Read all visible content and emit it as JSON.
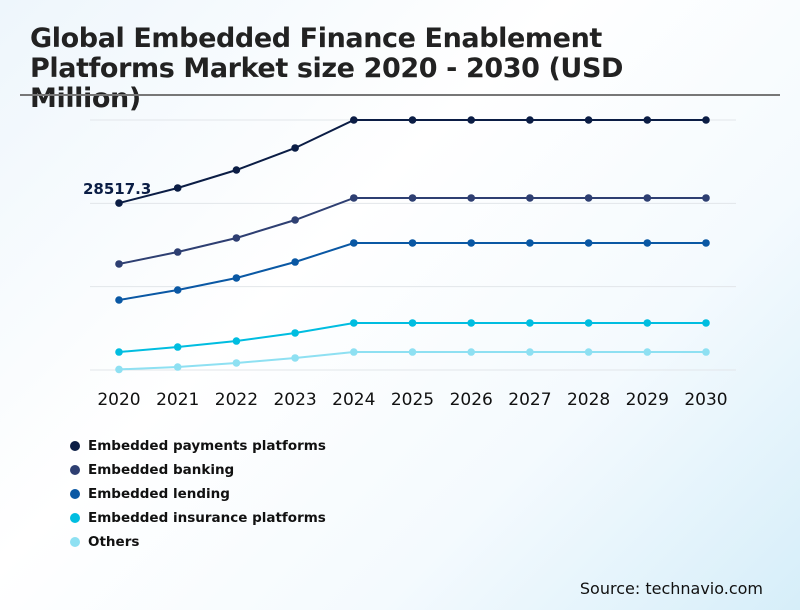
{
  "title": "Global Embedded Finance Enablement Platforms Market size 2020 - 2030 (USD Million)",
  "source": "Source: technavio.com",
  "chart_data": {
    "type": "line",
    "title": "Global Embedded Finance Enablement Platforms Market size 2020 - 2030 (USD Million)",
    "xlabel": "",
    "ylabel": "",
    "categories": [
      "2020",
      "2021",
      "2022",
      "2023",
      "2024",
      "2025",
      "2026",
      "2027",
      "2028",
      "2029",
      "2030"
    ],
    "ylim": [
      0,
      42700
    ],
    "grid": true,
    "legend_position": "bottom-left",
    "annotation": {
      "series": 0,
      "index": 0,
      "text": "28517.3"
    },
    "series": [
      {
        "name": "Embedded payments platforms",
        "color": "#0b1d45",
        "values": [
          28517.3,
          31086,
          34160,
          37918,
          42700,
          42700,
          42700,
          42700,
          42700,
          42700,
          42700
        ]
      },
      {
        "name": "Embedded banking",
        "color": "#2e3f72",
        "values": [
          18105,
          20154,
          22546,
          25620,
          29378,
          29378,
          29378,
          29378,
          29378,
          29378,
          29378
        ]
      },
      {
        "name": "Embedded lending",
        "color": "#0a58a4",
        "values": [
          11956,
          13664,
          15714,
          18446,
          21692,
          21692,
          21692,
          21692,
          21692,
          21692,
          21692
        ]
      },
      {
        "name": "Embedded insurance platforms",
        "color": "#00bde0",
        "values": [
          3074,
          3928,
          4953,
          6320,
          8028,
          8028,
          8028,
          8028,
          8028,
          8028,
          8028
        ]
      },
      {
        "name": "Others",
        "color": "#8ee0f2",
        "values": [
          100,
          512,
          1196,
          2050,
          3074,
          3074,
          3074,
          3074,
          3074,
          3074,
          3074
        ]
      }
    ]
  }
}
